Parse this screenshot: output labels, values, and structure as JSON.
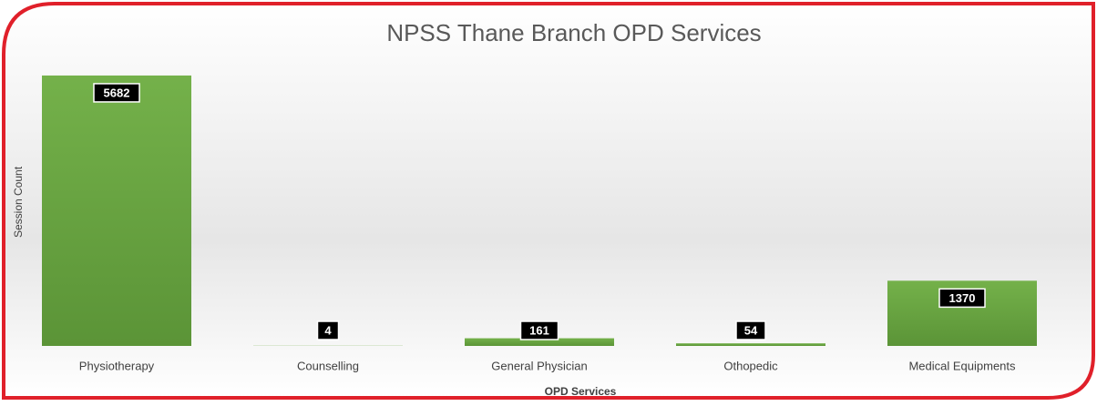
{
  "chart_data": {
    "type": "bar",
    "title": "NPSS Thane Branch OPD Services",
    "x_label": "OPD Services",
    "y_label": "Session Count",
    "categories": [
      "Physiotherapy",
      "Counselling",
      "General Physician",
      "Othopedic",
      "Medical Equipments"
    ],
    "values": [
      5682,
      4,
      161,
      54,
      1370
    ],
    "color": "#6aa84f",
    "ylim": [
      0,
      5700
    ]
  }
}
